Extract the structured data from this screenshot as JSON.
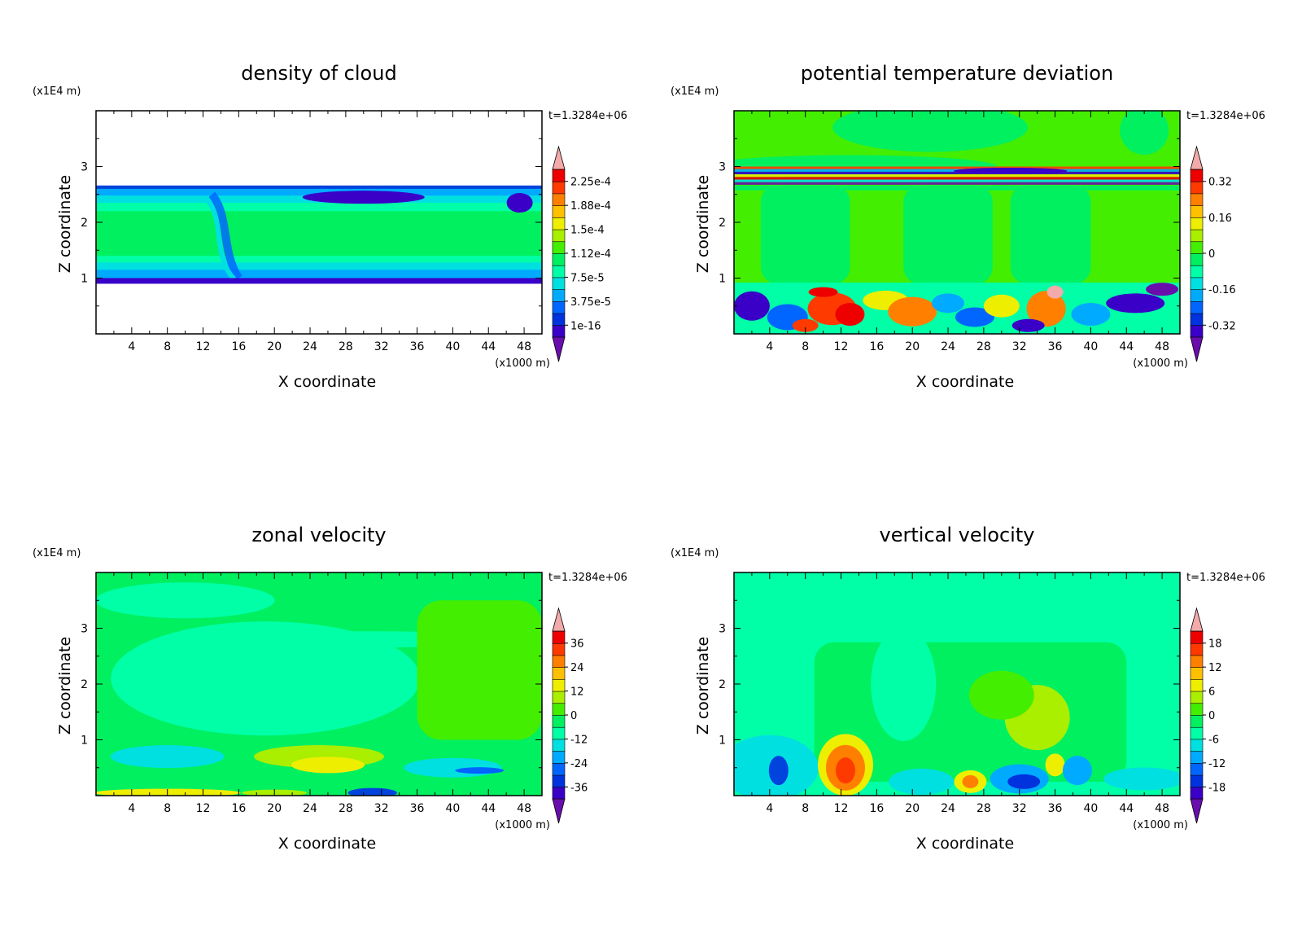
{
  "chart_data": [
    {
      "type": "heatmap",
      "title": "density of cloud",
      "xlabel": "X coordinate",
      "ylabel": "Z coordinate",
      "x_unit": "(x1000 m)",
      "y_unit": "(x1E4 m)",
      "time_label": "t=1.3284e+06",
      "xlim": [
        0,
        50
      ],
      "ylim": [
        0,
        4
      ],
      "x_ticks": [
        "4",
        "8",
        "12",
        "16",
        "20",
        "24",
        "28",
        "32",
        "36",
        "40",
        "44",
        "48"
      ],
      "y_ticks": [
        "1",
        "2",
        "3"
      ],
      "colorbar_labels": [
        "2.25e-4",
        "1.88e-4",
        "1.5e-4",
        "1.12e-4",
        "7.5e-5",
        "3.75e-5",
        "1e-16"
      ],
      "field": "cloud"
    },
    {
      "type": "heatmap",
      "title": "potential temperature deviation",
      "xlabel": "X coordinate",
      "ylabel": "Z coordinate",
      "x_unit": "(x1000 m)",
      "y_unit": "(x1E4 m)",
      "time_label": "t=1.3284e+06",
      "xlim": [
        0,
        50
      ],
      "ylim": [
        0,
        4
      ],
      "x_ticks": [
        "4",
        "8",
        "12",
        "16",
        "20",
        "24",
        "28",
        "32",
        "36",
        "40",
        "44",
        "48"
      ],
      "y_ticks": [
        "1",
        "2",
        "3"
      ],
      "colorbar_labels": [
        "0.32",
        "0.16",
        "0",
        "-0.16",
        "-0.32"
      ],
      "field": "theta"
    },
    {
      "type": "heatmap",
      "title": "zonal velocity",
      "xlabel": "X coordinate",
      "ylabel": "Z coordinate",
      "x_unit": "(x1000 m)",
      "y_unit": "(x1E4 m)",
      "time_label": "t=1.3284e+06",
      "xlim": [
        0,
        50
      ],
      "ylim": [
        0,
        4
      ],
      "x_ticks": [
        "4",
        "8",
        "12",
        "16",
        "20",
        "24",
        "28",
        "32",
        "36",
        "40",
        "44",
        "48"
      ],
      "y_ticks": [
        "1",
        "2",
        "3"
      ],
      "colorbar_labels": [
        "36",
        "24",
        "12",
        "0",
        "-12",
        "-24",
        "-36"
      ],
      "field": "u"
    },
    {
      "type": "heatmap",
      "title": "vertical velocity",
      "xlabel": "X coordinate",
      "ylabel": "Z coordinate",
      "x_unit": "(x1000 m)",
      "y_unit": "(x1E4 m)",
      "time_label": "t=1.3284e+06",
      "xlim": [
        0,
        50
      ],
      "ylim": [
        0,
        4
      ],
      "x_ticks": [
        "4",
        "8",
        "12",
        "16",
        "20",
        "24",
        "28",
        "32",
        "36",
        "40",
        "44",
        "48"
      ],
      "y_ticks": [
        "1",
        "2",
        "3"
      ],
      "colorbar_labels": [
        "18",
        "12",
        "6",
        "0",
        "-6",
        "-12",
        "-18"
      ],
      "field": "w"
    }
  ],
  "colormap": [
    "#6a0dad",
    "#3a00c8",
    "#0033dd",
    "#0066ff",
    "#00aaff",
    "#00e0e0",
    "#00ffa6",
    "#00f060",
    "#44ee00",
    "#aaee00",
    "#eeee00",
    "#ffc000",
    "#ff8000",
    "#ff3a00",
    "#ee0000",
    "#f2aaaa"
  ]
}
